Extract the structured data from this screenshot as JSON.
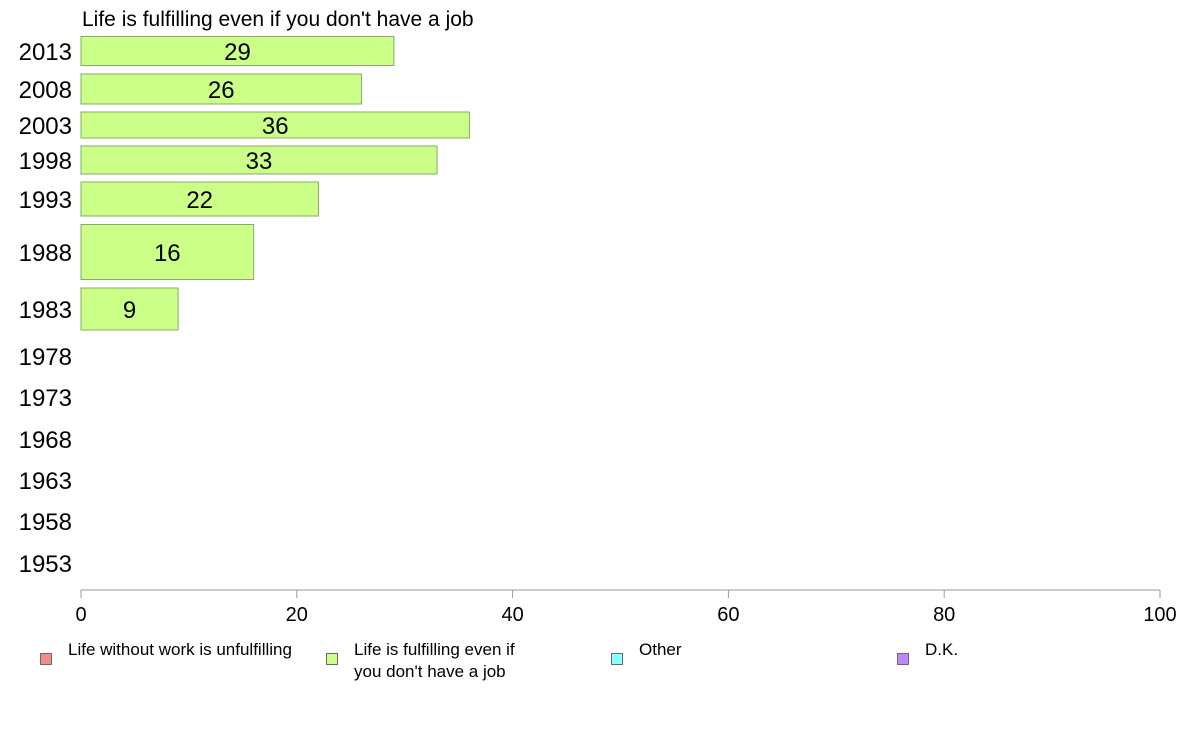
{
  "chart_data": {
    "type": "bar",
    "orientation": "horizontal",
    "title": "Life is fulfilling even if you don't have a job",
    "categories": [
      "2013",
      "2008",
      "2003",
      "1998",
      "1993",
      "1988",
      "1983",
      "1978",
      "1973",
      "1968",
      "1963",
      "1958",
      "1953"
    ],
    "series": [
      {
        "name": "Life is fulfilling even if you don't have a job",
        "color": "#ccff88",
        "values": [
          29,
          26,
          36,
          33,
          22,
          16,
          9,
          null,
          null,
          null,
          null,
          null,
          null
        ],
        "labels": [
          "29",
          "26",
          "36",
          "33",
          "22",
          "16",
          "9",
          "",
          "",
          "",
          "",
          "",
          ""
        ]
      }
    ],
    "xlim": [
      0,
      100
    ],
    "xticks": [
      "0",
      "20",
      "40",
      "60",
      "80",
      "100"
    ],
    "grid": false,
    "legend_placement": "bottom"
  },
  "legend": {
    "items": [
      {
        "label": "Life without work is unfulfilling",
        "color": "#f28b8b"
      },
      {
        "label": "Life is fulfilling even if\nyou don't have a job",
        "color": "#ccff88"
      },
      {
        "label": "Other",
        "color": "#88ffff"
      },
      {
        "label": "D.K.",
        "color": "#bb88ff"
      }
    ]
  }
}
